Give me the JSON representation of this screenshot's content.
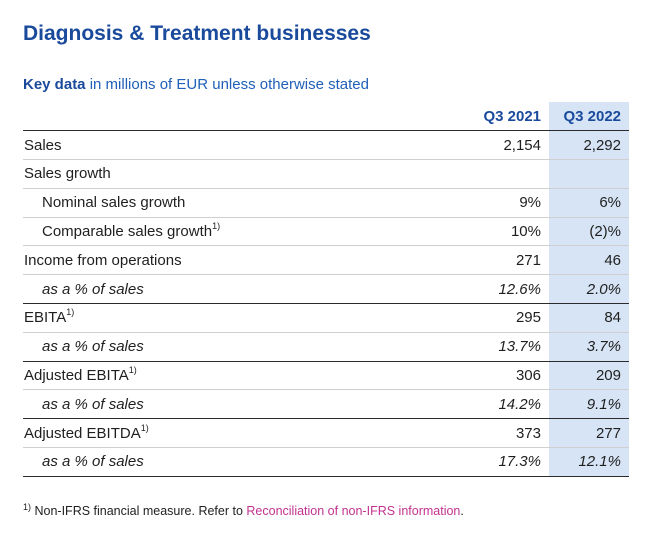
{
  "title": "Diagnosis & Treatment businesses",
  "subtitle": {
    "strong": "Key data",
    "rest": " in millions of EUR unless otherwise stated"
  },
  "table": {
    "headers": [
      "",
      "Q3 2021",
      "Q3 2022"
    ],
    "rows": [
      {
        "label": "Sales",
        "sup": "",
        "indent": false,
        "pct": false,
        "q3_2021": "2,154",
        "q3_2022": "2,292"
      },
      {
        "label": "Sales growth",
        "sup": "",
        "indent": false,
        "pct": false,
        "q3_2021": "",
        "q3_2022": ""
      },
      {
        "label": "Nominal sales growth",
        "sup": "",
        "indent": true,
        "pct": false,
        "q3_2021": "9%",
        "q3_2022": "6%"
      },
      {
        "label": "Comparable sales growth",
        "sup": "1)",
        "indent": true,
        "pct": false,
        "q3_2021": "10%",
        "q3_2022": "(2)%"
      },
      {
        "label": "Income from operations",
        "sup": "",
        "indent": false,
        "pct": false,
        "q3_2021": "271",
        "q3_2022": "46"
      },
      {
        "label": "as a % of sales",
        "sup": "",
        "indent": true,
        "pct": true,
        "q3_2021": "12.6%",
        "q3_2022": "2.0%"
      },
      {
        "label": "EBITA",
        "sup": "1)",
        "indent": false,
        "pct": false,
        "q3_2021": "295",
        "q3_2022": "84"
      },
      {
        "label": "as a % of sales",
        "sup": "",
        "indent": true,
        "pct": true,
        "q3_2021": "13.7%",
        "q3_2022": "3.7%"
      },
      {
        "label": "Adjusted EBITA",
        "sup": "1)",
        "indent": false,
        "pct": false,
        "q3_2021": "306",
        "q3_2022": "209"
      },
      {
        "label": "as a % of sales",
        "sup": "",
        "indent": true,
        "pct": true,
        "q3_2021": "14.2%",
        "q3_2022": "9.1%"
      },
      {
        "label": "Adjusted EBITDA",
        "sup": "1)",
        "indent": false,
        "pct": false,
        "q3_2021": "373",
        "q3_2022": "277"
      },
      {
        "label": "as a % of sales",
        "sup": "",
        "indent": true,
        "pct": true,
        "q3_2021": "17.3%",
        "q3_2022": "12.1%"
      }
    ]
  },
  "footnote": {
    "mark": "1)",
    "text": " Non-IFRS financial measure. Refer to ",
    "link": "Reconciliation of non-IFRS information",
    "end": "."
  },
  "colors": {
    "title": "#1a4a9c",
    "highlight_column": "#d6e4f5",
    "link": "#c2338f"
  }
}
